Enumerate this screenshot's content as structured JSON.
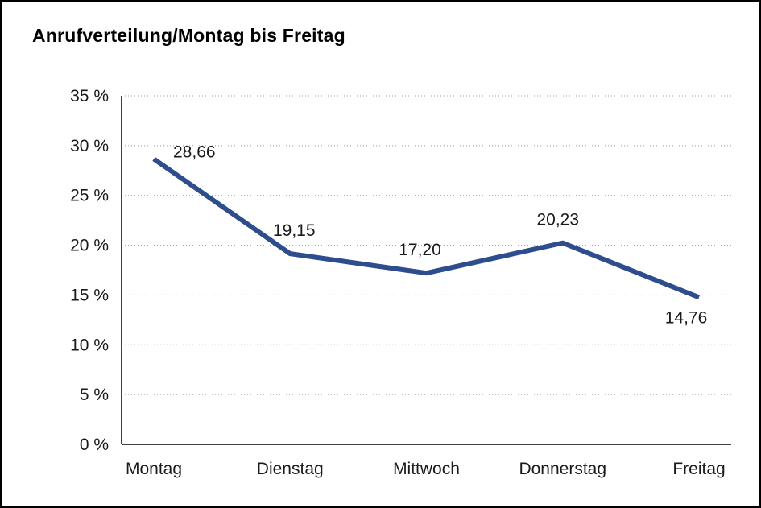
{
  "chart_data": {
    "type": "line",
    "title": "Anrufverteilung/Montag bis Freitag",
    "categories": [
      "Montag",
      "Dienstag",
      "Mittwoch",
      "Donnerstag",
      "Freitag"
    ],
    "values": [
      28.66,
      19.15,
      17.2,
      20.23,
      14.76
    ],
    "value_labels": [
      "28,66",
      "19,15",
      "17,20",
      "20,23",
      "14,76"
    ],
    "series_name": "Anrufverteilung",
    "xlabel": "",
    "ylabel": "",
    "ylim": [
      0,
      35
    ],
    "y_step": 5,
    "y_ticks": [
      "0 %",
      "5 %",
      "10 %",
      "15 %",
      "20 %",
      "25 %",
      "30 %",
      "35 %"
    ],
    "grid": "horizontal-dotted",
    "legend": "none",
    "line_color": "#2e4d8e",
    "axis_color": "#000000",
    "grid_color": "#9a9a9a",
    "background_color": "#ffffff"
  }
}
